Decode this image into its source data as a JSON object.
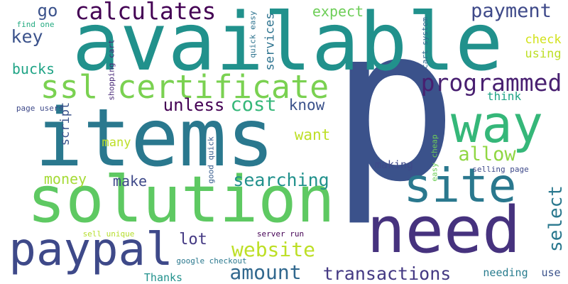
{
  "words": [
    {
      "text": "p",
      "color": "#3b528b"
    },
    {
      "text": "available",
      "color": "#21918c"
    },
    {
      "text": "items",
      "color": "#2a788e"
    },
    {
      "text": "need",
      "color": "#46327e"
    },
    {
      "text": "solution",
      "color": "#5ec962"
    },
    {
      "text": "site",
      "color": "#2a788e"
    },
    {
      "text": "way",
      "color": "#35b779"
    },
    {
      "text": "paypal",
      "color": "#3e4989"
    },
    {
      "text": "ssl certificate",
      "color": "#7ad151"
    },
    {
      "text": "calculates",
      "color": "#440154"
    },
    {
      "text": "programmed",
      "color": "#481f70"
    },
    {
      "text": "payment",
      "color": "#3e4989"
    },
    {
      "text": "website",
      "color": "#bddf26"
    },
    {
      "text": "amount",
      "color": "#31688e"
    },
    {
      "text": "transactions",
      "color": "#443983"
    },
    {
      "text": "select",
      "color": "#2a788e"
    },
    {
      "text": "searching",
      "color": "#21918c"
    },
    {
      "text": "allow",
      "color": "#90d743"
    },
    {
      "text": "cost",
      "color": "#35b779"
    },
    {
      "text": "unless",
      "color": "#440154"
    },
    {
      "text": "key",
      "color": "#3b528b"
    },
    {
      "text": "go",
      "color": "#3b528b"
    },
    {
      "text": "expect",
      "color": "#6ece58"
    },
    {
      "text": "bucks",
      "color": "#20a486"
    },
    {
      "text": "know",
      "color": "#3b528b"
    },
    {
      "text": "want",
      "color": "#bddf26"
    },
    {
      "text": "money",
      "color": "#a5db36"
    },
    {
      "text": "make",
      "color": "#3e4989"
    },
    {
      "text": "lot",
      "color": "#443983"
    },
    {
      "text": "check",
      "color": "#d2e21b"
    },
    {
      "text": "using",
      "color": "#bddf26"
    },
    {
      "text": "services",
      "color": "#2c728e"
    },
    {
      "text": "script",
      "color": "#3b528b"
    },
    {
      "text": "many",
      "color": "#bddf26"
    },
    {
      "text": "think",
      "color": "#20a486"
    },
    {
      "text": "making",
      "color": "#3e4989"
    },
    {
      "text": "needing",
      "color": "#287c8e"
    },
    {
      "text": "use",
      "color": "#3b528b"
    },
    {
      "text": "Thanks",
      "color": "#21918c"
    },
    {
      "text": "find one",
      "color": "#25ab82"
    },
    {
      "text": "page users",
      "color": "#3e4989"
    },
    {
      "text": "shopping cart",
      "color": "#482878"
    },
    {
      "text": "quick easy",
      "color": "#2c728e"
    },
    {
      "text": "cart system",
      "color": "#31688e"
    },
    {
      "text": "good quick",
      "color": "#365c8d"
    },
    {
      "text": "easy cheap",
      "color": "#6ece58"
    },
    {
      "text": "selling page",
      "color": "#3e4989"
    },
    {
      "text": "sell unique",
      "color": "#b5de2b"
    },
    {
      "text": "server run",
      "color": "#440154"
    },
    {
      "text": "google checkout",
      "color": "#2a788e"
    }
  ]
}
